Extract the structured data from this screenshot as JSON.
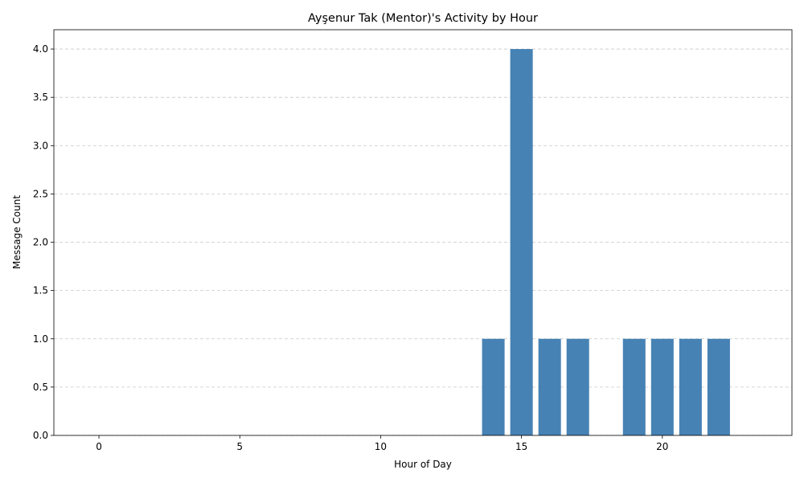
{
  "chart_data": {
    "type": "bar",
    "title": "Ayşenur Tak (Mentor)'s Activity by Hour",
    "xlabel": "Hour of Day",
    "ylabel": "Message Count",
    "x": [
      14,
      15,
      16,
      17,
      19,
      20,
      21,
      22
    ],
    "values": [
      1,
      4,
      1,
      1,
      1,
      1,
      1,
      1
    ],
    "xlim": [
      -1.6,
      24.6
    ],
    "ylim": [
      0,
      4.2
    ],
    "xticks": [
      0,
      5,
      10,
      15,
      20
    ],
    "yticks": [
      0.0,
      0.5,
      1.0,
      1.5,
      2.0,
      2.5,
      3.0,
      3.5,
      4.0
    ],
    "ytick_labels": [
      "0.0",
      "0.5",
      "1.0",
      "1.5",
      "2.0",
      "2.5",
      "3.0",
      "3.5",
      "4.0"
    ],
    "bar_width": 0.8,
    "grid": "y-dashed",
    "colors": {
      "bar": "#4682b4",
      "grid": "#c8c8c8",
      "axis": "#000000"
    }
  }
}
